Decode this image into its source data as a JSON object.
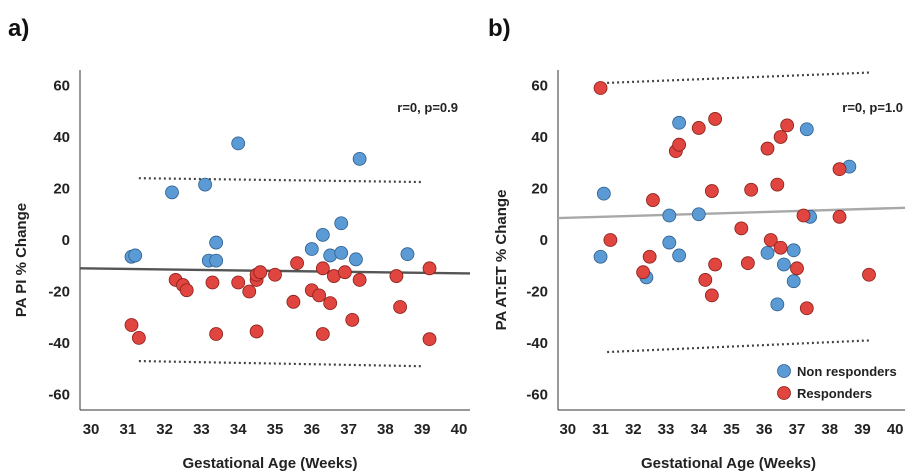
{
  "colors": {
    "non_responders": "#5b9bd5",
    "responders": "#e0453f",
    "fit_line_a": "#555555",
    "fit_line_b": "#a8a8a8",
    "ci_line": "#444444"
  },
  "chart_data": [
    {
      "panel_label": "a)",
      "type": "scatter",
      "xlabel": "Gestational Age (Weeks)",
      "ylabel": "PA PI % Change",
      "xlim": [
        29.7,
        40.3
      ],
      "ylim": [
        -66,
        66
      ],
      "x_ticks": [
        "30",
        "31",
        "32",
        "33",
        "34",
        "35",
        "36",
        "37",
        "38",
        "39",
        "40"
      ],
      "y_ticks": [
        "60",
        "40",
        "20",
        "0",
        "-20",
        "-40",
        "-60"
      ],
      "annotation": "r=0, p=0.9",
      "grid": false,
      "fit_line": {
        "x": [
          29.7,
          40.3
        ],
        "y": [
          -11,
          -13
        ]
      },
      "ci_upper": {
        "x": [
          31.3,
          39.0
        ],
        "y": [
          24,
          22.5
        ]
      },
      "ci_lower": {
        "x": [
          31.3,
          39.0
        ],
        "y": [
          -47,
          -49
        ]
      },
      "series": [
        {
          "group": "non_responders",
          "points": [
            [
              31.1,
              -6.5
            ],
            [
              31.2,
              -6
            ],
            [
              32.2,
              18.5
            ],
            [
              33.1,
              21.5
            ],
            [
              33.2,
              -8
            ],
            [
              33.4,
              -1
            ],
            [
              33.4,
              -8
            ],
            [
              34.0,
              37.5
            ],
            [
              36.0,
              -3.5
            ],
            [
              36.3,
              2
            ],
            [
              36.5,
              -6
            ],
            [
              36.8,
              6.5
            ],
            [
              36.8,
              -5
            ],
            [
              37.2,
              -7.5
            ],
            [
              37.3,
              31.5
            ],
            [
              38.6,
              -5.5
            ]
          ]
        },
        {
          "group": "responders",
          "points": [
            [
              31.1,
              -33
            ],
            [
              31.3,
              -38
            ],
            [
              32.3,
              -15.5
            ],
            [
              32.5,
              -17.5
            ],
            [
              32.6,
              -19.5
            ],
            [
              33.3,
              -16.5
            ],
            [
              33.4,
              -36.5
            ],
            [
              34.0,
              -16.5
            ],
            [
              34.3,
              -20
            ],
            [
              34.5,
              -15.5
            ],
            [
              34.5,
              -13.5
            ],
            [
              34.5,
              -35.5
            ],
            [
              34.6,
              -12.5
            ],
            [
              35.0,
              -13.5
            ],
            [
              35.5,
              -24
            ],
            [
              35.6,
              -9
            ],
            [
              36.0,
              -19.5
            ],
            [
              36.2,
              -21.5
            ],
            [
              36.3,
              -11
            ],
            [
              36.3,
              -36.5
            ],
            [
              36.5,
              -24.5
            ],
            [
              36.6,
              -14
            ],
            [
              36.9,
              -12.5
            ],
            [
              37.1,
              -31
            ],
            [
              37.3,
              -15.5
            ],
            [
              38.3,
              -14
            ],
            [
              38.4,
              -26
            ],
            [
              39.2,
              -11
            ],
            [
              39.2,
              -38.5
            ]
          ]
        }
      ]
    },
    {
      "panel_label": "b)",
      "type": "scatter",
      "xlabel": "Gestational Age (Weeks)",
      "ylabel": "PA AT:ET % Change",
      "xlim": [
        29.7,
        40.3
      ],
      "ylim": [
        -66,
        66
      ],
      "x_ticks": [
        "30",
        "31",
        "32",
        "33",
        "34",
        "35",
        "36",
        "37",
        "38",
        "39",
        "40"
      ],
      "y_ticks": [
        "60",
        "40",
        "20",
        "0",
        "-20",
        "-40",
        "-60"
      ],
      "annotation": "r=0, p=1.0",
      "grid": false,
      "legend": {
        "position": "bottom-right",
        "entries": [
          {
            "label": "Non responders",
            "group": "non_responders"
          },
          {
            "label": "Responders",
            "group": "responders"
          }
        ]
      },
      "fit_line": {
        "x": [
          29.7,
          40.3
        ],
        "y": [
          8.5,
          12.5
        ]
      },
      "ci_upper": {
        "x": [
          31.2,
          39.2
        ],
        "y": [
          61,
          65
        ]
      },
      "ci_lower": {
        "x": [
          31.2,
          39.2
        ],
        "y": [
          -43.5,
          -39
        ]
      },
      "series": [
        {
          "group": "non_responders",
          "points": [
            [
              31.0,
              -6.5
            ],
            [
              31.1,
              18
            ],
            [
              32.4,
              -14.5
            ],
            [
              33.1,
              9.5
            ],
            [
              33.1,
              -1
            ],
            [
              33.4,
              45.5
            ],
            [
              33.4,
              -6
            ],
            [
              34.0,
              10
            ],
            [
              36.1,
              -5
            ],
            [
              36.4,
              -25
            ],
            [
              36.6,
              -9.5
            ],
            [
              36.9,
              -4
            ],
            [
              36.9,
              -16
            ],
            [
              37.3,
              43
            ],
            [
              37.4,
              9
            ],
            [
              38.6,
              28.5
            ]
          ]
        },
        {
          "group": "responders",
          "points": [
            [
              31.0,
              59
            ],
            [
              31.3,
              0
            ],
            [
              32.3,
              -12.5
            ],
            [
              32.5,
              -6.5
            ],
            [
              32.6,
              15.5
            ],
            [
              33.3,
              34.5
            ],
            [
              33.4,
              37
            ],
            [
              34.0,
              43.5
            ],
            [
              34.2,
              -15.5
            ],
            [
              34.4,
              -21.5
            ],
            [
              34.4,
              19
            ],
            [
              34.5,
              47
            ],
            [
              34.5,
              -9.5
            ],
            [
              35.3,
              4.5
            ],
            [
              35.5,
              -9
            ],
            [
              35.6,
              19.5
            ],
            [
              36.1,
              35.5
            ],
            [
              36.2,
              0
            ],
            [
              36.4,
              21.5
            ],
            [
              36.5,
              40
            ],
            [
              36.5,
              -3
            ],
            [
              36.7,
              44.5
            ],
            [
              37.0,
              -11
            ],
            [
              37.2,
              9.5
            ],
            [
              37.3,
              -26.5
            ],
            [
              38.3,
              27.5
            ],
            [
              38.3,
              9
            ],
            [
              39.2,
              -13.5
            ]
          ]
        }
      ]
    }
  ]
}
